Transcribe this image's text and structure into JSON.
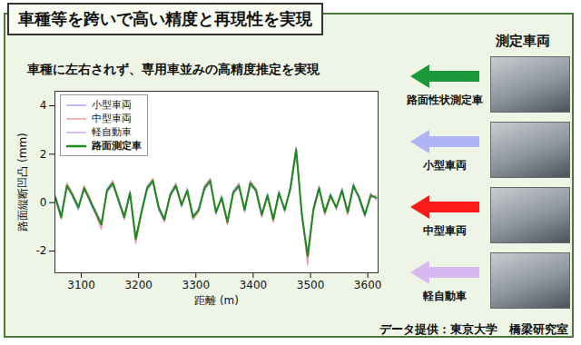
{
  "header": {
    "title": "車種等を跨いで高い精度と再現性を実現"
  },
  "chart_data": {
    "type": "line",
    "title": "車種に左右されず、専用車並みの高精度推定を実現",
    "x_label": "距離 (m)",
    "y_label": "路面縦断凹凸 (mm)",
    "x": [
      3055,
      3065,
      3075,
      3085,
      3095,
      3105,
      3115,
      3125,
      3135,
      3145,
      3155,
      3165,
      3175,
      3185,
      3195,
      3205,
      3215,
      3225,
      3235,
      3245,
      3255,
      3265,
      3275,
      3285,
      3295,
      3305,
      3315,
      3325,
      3335,
      3345,
      3355,
      3365,
      3375,
      3385,
      3395,
      3405,
      3415,
      3425,
      3435,
      3445,
      3455,
      3465,
      3475,
      3485,
      3495,
      3505,
      3515,
      3525,
      3535,
      3545,
      3555,
      3565,
      3575,
      3585,
      3595,
      3605,
      3615
    ],
    "series": [
      {
        "name": "小型車両",
        "color": "#a4a4f4",
        "values": [
          0.3,
          -0.5,
          0.8,
          0.2,
          -0.3,
          0.7,
          0.0,
          -0.5,
          -1.0,
          0.6,
          0.9,
          0.0,
          -0.7,
          0.5,
          -1.6,
          -0.3,
          0.7,
          1.0,
          -0.3,
          -0.8,
          0.4,
          0.8,
          -0.2,
          0.6,
          -0.7,
          -0.2,
          0.7,
          1.0,
          -0.5,
          0.3,
          -0.9,
          0.5,
          0.8,
          -0.4,
          0.9,
          0.4,
          -0.6,
          0.4,
          -0.8,
          0.5,
          -0.4,
          0.7,
          2.3,
          -0.6,
          -2.4,
          -0.2,
          0.7,
          -0.5,
          0.4,
          -0.3,
          0.6,
          -0.5,
          0.8,
          0.1,
          -0.6,
          0.4,
          0.1
        ]
      },
      {
        "name": "中型車両",
        "color": "#f49a9a",
        "values": [
          0.1,
          -0.7,
          0.8,
          0.4,
          -0.2,
          0.7,
          0.2,
          -0.5,
          -1.1,
          0.5,
          0.9,
          0.2,
          -0.7,
          0.3,
          -1.7,
          -0.5,
          0.6,
          1.0,
          -0.1,
          -0.8,
          0.2,
          0.8,
          0.0,
          0.4,
          -0.7,
          -0.4,
          0.7,
          1.0,
          -0.3,
          0.1,
          -0.9,
          0.3,
          0.8,
          -0.2,
          0.9,
          0.6,
          -0.6,
          0.2,
          -0.8,
          0.3,
          -0.2,
          0.5,
          2.1,
          -0.4,
          -2.6,
          -0.4,
          0.6,
          -0.5,
          0.2,
          -0.2,
          0.4,
          -0.5,
          0.6,
          0.3,
          -0.5,
          0.2,
          0.3
        ]
      },
      {
        "name": "軽自動車",
        "color": "#cfa6ee",
        "values": [
          0.2,
          -0.6,
          0.6,
          0.3,
          -0.1,
          0.5,
          0.1,
          -0.3,
          -0.8,
          0.4,
          0.7,
          0.1,
          -0.5,
          0.4,
          -1.4,
          -0.4,
          0.5,
          0.8,
          -0.2,
          -0.6,
          0.3,
          0.6,
          -0.1,
          0.5,
          -0.5,
          -0.3,
          0.5,
          0.8,
          -0.4,
          0.2,
          -0.7,
          0.4,
          0.6,
          -0.3,
          0.7,
          0.5,
          -0.4,
          0.3,
          -0.6,
          0.4,
          -0.3,
          0.5,
          2.0,
          -0.5,
          -2.1,
          -0.3,
          0.5,
          -0.3,
          0.3,
          -0.2,
          0.4,
          -0.3,
          0.6,
          0.2,
          -0.4,
          0.3,
          0.2
        ]
      },
      {
        "name": "路面測定車",
        "color": "#1a8a1a",
        "values": [
          0.2,
          -0.6,
          0.7,
          0.3,
          -0.2,
          0.6,
          0.1,
          -0.4,
          -0.9,
          0.5,
          0.8,
          0.1,
          -0.6,
          0.4,
          -1.5,
          -0.4,
          0.6,
          0.9,
          -0.2,
          -0.7,
          0.3,
          0.7,
          -0.1,
          0.5,
          -0.6,
          -0.3,
          0.6,
          0.9,
          -0.4,
          0.2,
          -0.8,
          0.4,
          0.7,
          -0.3,
          0.8,
          0.5,
          -0.5,
          0.3,
          -0.7,
          0.4,
          -0.3,
          0.6,
          2.2,
          -0.5,
          -2.2,
          -0.3,
          0.6,
          -0.4,
          0.3,
          -0.2,
          0.5,
          -0.4,
          0.7,
          0.2,
          -0.5,
          0.3,
          0.2
        ]
      }
    ],
    "xlim": [
      3054,
      3618
    ],
    "xticks": [
      3100,
      3200,
      3300,
      3400,
      3500,
      3600
    ],
    "ylim": [
      -2.9,
      4.6
    ],
    "yticks": [
      -2,
      0,
      2,
      4
    ],
    "legend": "upper left",
    "grid": false
  },
  "side_panel": {
    "title": "測定車両",
    "vehicles": [
      {
        "label": "路面性状測定車",
        "color": "#1a9a3a"
      },
      {
        "label": "小型車両",
        "color": "#b0b4f4"
      },
      {
        "label": "中型車両",
        "color": "#ff1a1a"
      },
      {
        "label": "軽自動車",
        "color": "#d8b8f0"
      }
    ]
  },
  "footer": "データ提供：東京大学　橋梁研究室"
}
